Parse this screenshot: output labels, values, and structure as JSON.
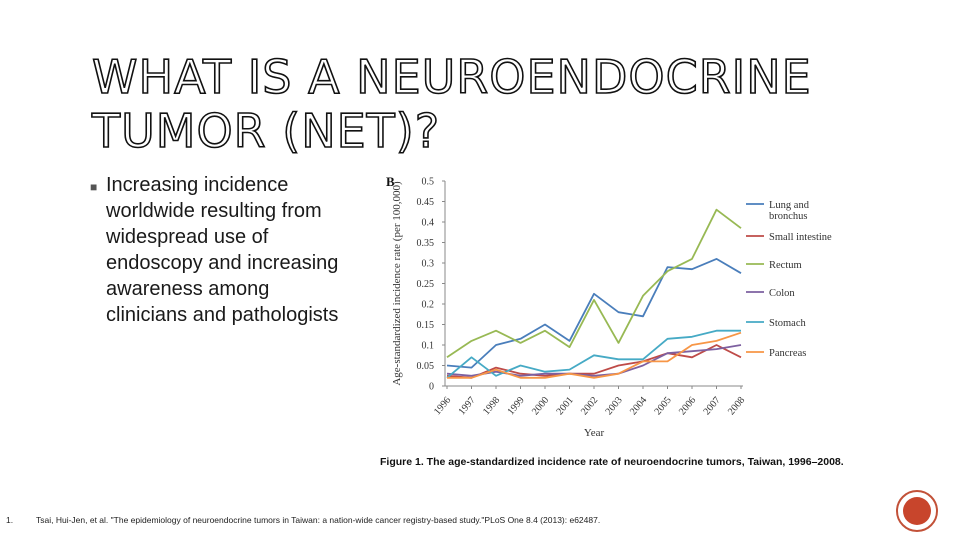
{
  "slide": {
    "title": "WHAT IS A NEUROENDOCRINE TUMOR (NET)?",
    "bullets": [
      "Increasing incidence worldwide resulting from widespread use of endoscopy and increasing awareness among clinicians and pathologists"
    ],
    "caption": "Figure 1. The age-standardized incidence rate of neuroendocrine tumors, Taiwan, 1996–2008.",
    "footnote_number": "1.",
    "footnote_text": "Tsai, Hui-Jen, et al. \"The epidemiology of neuroendocrine tumors in Taiwan: a nation-wide cancer registry-based study.\"PLoS One 8.4 (2013): e62487.",
    "accent_color": "#c8452c"
  },
  "chart_data": {
    "type": "line",
    "panel_label": "B",
    "xlabel": "Year",
    "ylabel": "Age-standardized incidence rate (per 100,000)",
    "ylim": [
      0,
      0.5
    ],
    "yticks": [
      "0",
      "0.05",
      "0.1",
      "0.15",
      "0.2",
      "0.25",
      "0.3",
      "0.35",
      "0.4",
      "0.45",
      "0.5"
    ],
    "categories": [
      "1996",
      "1997",
      "1998",
      "1999",
      "2000",
      "2001",
      "2002",
      "2003",
      "2004",
      "2005",
      "2006",
      "2007",
      "2008"
    ],
    "legend_position": "right",
    "grid": false,
    "series": [
      {
        "name": "Lung and bronchus",
        "color": "#4a7ebb",
        "values": [
          0.05,
          0.045,
          0.1,
          0.115,
          0.15,
          0.11,
          0.225,
          0.18,
          0.17,
          0.29,
          0.285,
          0.31,
          0.275
        ]
      },
      {
        "name": "Small intestine",
        "color": "#be4b48",
        "values": [
          0.025,
          0.02,
          0.045,
          0.03,
          0.025,
          0.03,
          0.03,
          0.05,
          0.06,
          0.08,
          0.07,
          0.1,
          0.07
        ]
      },
      {
        "name": "Rectum",
        "color": "#98b954",
        "values": [
          0.07,
          0.11,
          0.135,
          0.105,
          0.135,
          0.095,
          0.21,
          0.105,
          0.22,
          0.28,
          0.31,
          0.43,
          0.385
        ]
      },
      {
        "name": "Colon",
        "color": "#7d60a0",
        "values": [
          0.03,
          0.025,
          0.035,
          0.025,
          0.03,
          0.03,
          0.025,
          0.03,
          0.05,
          0.08,
          0.085,
          0.09,
          0.1
        ]
      },
      {
        "name": "Stomach",
        "color": "#46aac5",
        "values": [
          0.02,
          0.07,
          0.025,
          0.05,
          0.035,
          0.04,
          0.075,
          0.065,
          0.065,
          0.115,
          0.12,
          0.135,
          0.135
        ]
      },
      {
        "name": "Pancreas",
        "color": "#f79646",
        "values": [
          0.02,
          0.02,
          0.04,
          0.02,
          0.02,
          0.03,
          0.02,
          0.03,
          0.06,
          0.06,
          0.1,
          0.11,
          0.13
        ]
      }
    ]
  }
}
